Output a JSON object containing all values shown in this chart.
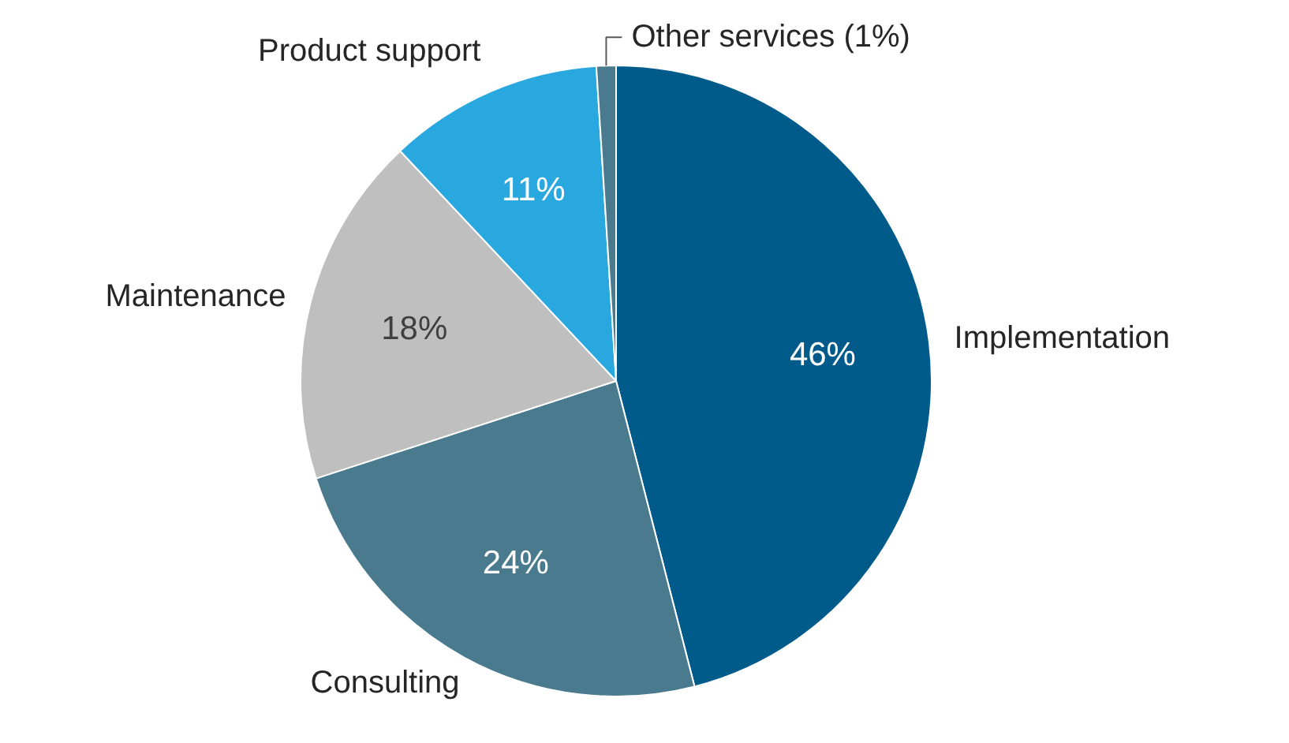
{
  "chart_data": {
    "type": "pie",
    "categories": [
      "Implementation",
      "Consulting",
      "Maintenance",
      "Product support",
      "Other services (1%)"
    ],
    "values": [
      46,
      24,
      18,
      11,
      1
    ],
    "colors": [
      "#005a8a",
      "#4a7a8e",
      "#bfbfbf",
      "#29a8e0",
      "#4a7a8e"
    ],
    "value_labels": [
      "46%",
      "24%",
      "18%",
      "11%",
      null
    ]
  }
}
